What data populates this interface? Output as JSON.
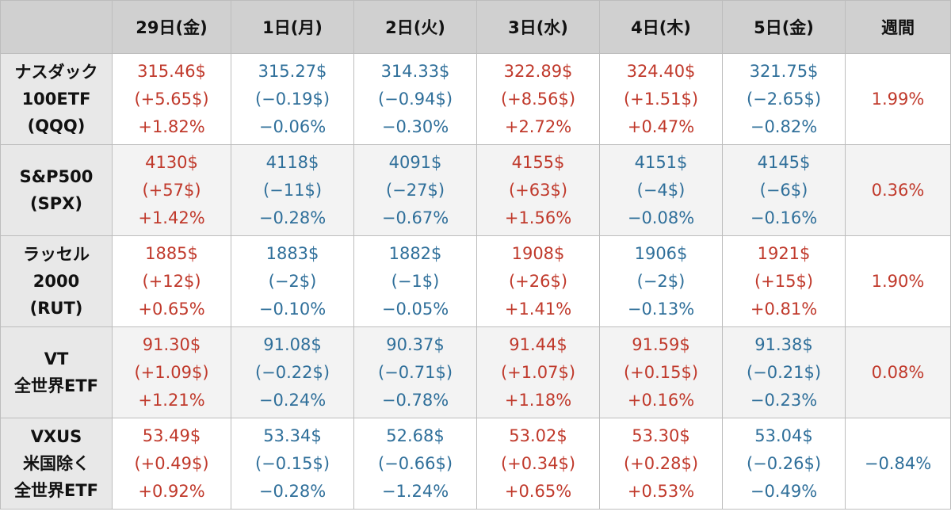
{
  "colors": {
    "up": "#c0392b",
    "down": "#2f6f9a",
    "header_bg": "#d0d0d0",
    "rowhead_bg": "#e8e8e8"
  },
  "header": [
    "",
    "29日(金)",
    "1日(月)",
    "2日(火)",
    "3日(水)",
    "4日(木)",
    "5日(金)",
    "週間"
  ],
  "rows": [
    {
      "name": [
        "ナスダック",
        "100ETF",
        "(QQQ)"
      ],
      "cells": [
        {
          "dir": "up",
          "price": "315.46$",
          "change": "(+5.65$)",
          "pct": "+1.82%"
        },
        {
          "dir": "down",
          "price": "315.27$",
          "change": "(−0.19$)",
          "pct": "−0.06%"
        },
        {
          "dir": "down",
          "price": "314.33$",
          "change": "(−0.94$)",
          "pct": "−0.30%"
        },
        {
          "dir": "up",
          "price": "322.89$",
          "change": "(+8.56$)",
          "pct": "+2.72%"
        },
        {
          "dir": "up",
          "price": "324.40$",
          "change": "(+1.51$)",
          "pct": "+0.47%"
        },
        {
          "dir": "down",
          "price": "321.75$",
          "change": "(−2.65$)",
          "pct": "−0.82%"
        }
      ],
      "weekly": {
        "dir": "up",
        "value": "1.99%"
      }
    },
    {
      "name": [
        "S&P500",
        "(SPX)"
      ],
      "cells": [
        {
          "dir": "up",
          "price": "4130$",
          "change": "(+57$)",
          "pct": "+1.42%"
        },
        {
          "dir": "down",
          "price": "4118$",
          "change": "(−11$)",
          "pct": "−0.28%"
        },
        {
          "dir": "down",
          "price": "4091$",
          "change": "(−27$)",
          "pct": "−0.67%"
        },
        {
          "dir": "up",
          "price": "4155$",
          "change": "(+63$)",
          "pct": "+1.56%"
        },
        {
          "dir": "down",
          "price": "4151$",
          "change": "(−4$)",
          "pct": "−0.08%"
        },
        {
          "dir": "down",
          "price": "4145$",
          "change": "(−6$)",
          "pct": "−0.16%"
        }
      ],
      "weekly": {
        "dir": "up",
        "value": "0.36%"
      }
    },
    {
      "name": [
        "ラッセル",
        "2000",
        "(RUT)"
      ],
      "cells": [
        {
          "dir": "up",
          "price": "1885$",
          "change": "(+12$)",
          "pct": "+0.65%"
        },
        {
          "dir": "down",
          "price": "1883$",
          "change": "(−2$)",
          "pct": "−0.10%"
        },
        {
          "dir": "down",
          "price": "1882$",
          "change": "(−1$)",
          "pct": "−0.05%"
        },
        {
          "dir": "up",
          "price": "1908$",
          "change": "(+26$)",
          "pct": "+1.41%"
        },
        {
          "dir": "down",
          "price": "1906$",
          "change": "(−2$)",
          "pct": "−0.13%"
        },
        {
          "dir": "up",
          "price": "1921$",
          "change": "(+15$)",
          "pct": "+0.81%"
        }
      ],
      "weekly": {
        "dir": "up",
        "value": "1.90%"
      }
    },
    {
      "name": [
        "VT",
        "全世界ETF"
      ],
      "cells": [
        {
          "dir": "up",
          "price": "91.30$",
          "change": "(+1.09$)",
          "pct": "+1.21%"
        },
        {
          "dir": "down",
          "price": "91.08$",
          "change": "(−0.22$)",
          "pct": "−0.24%"
        },
        {
          "dir": "down",
          "price": "90.37$",
          "change": "(−0.71$)",
          "pct": "−0.78%"
        },
        {
          "dir": "up",
          "price": "91.44$",
          "change": "(+1.07$)",
          "pct": "+1.18%"
        },
        {
          "dir": "up",
          "price": "91.59$",
          "change": "(+0.15$)",
          "pct": "+0.16%"
        },
        {
          "dir": "down",
          "price": "91.38$",
          "change": "(−0.21$)",
          "pct": "−0.23%"
        }
      ],
      "weekly": {
        "dir": "up",
        "value": "0.08%"
      }
    },
    {
      "name": [
        "VXUS",
        "米国除く",
        "全世界ETF"
      ],
      "cells": [
        {
          "dir": "up",
          "price": "53.49$",
          "change": "(+0.49$)",
          "pct": "+0.92%"
        },
        {
          "dir": "down",
          "price": "53.34$",
          "change": "(−0.15$)",
          "pct": "−0.28%"
        },
        {
          "dir": "down",
          "price": "52.68$",
          "change": "(−0.66$)",
          "pct": "−1.24%"
        },
        {
          "dir": "up",
          "price": "53.02$",
          "change": "(+0.34$)",
          "pct": "+0.65%"
        },
        {
          "dir": "up",
          "price": "53.30$",
          "change": "(+0.28$)",
          "pct": "+0.53%"
        },
        {
          "dir": "down",
          "price": "53.04$",
          "change": "(−0.26$)",
          "pct": "−0.49%"
        }
      ],
      "weekly": {
        "dir": "down",
        "value": "−0.84%"
      }
    }
  ]
}
